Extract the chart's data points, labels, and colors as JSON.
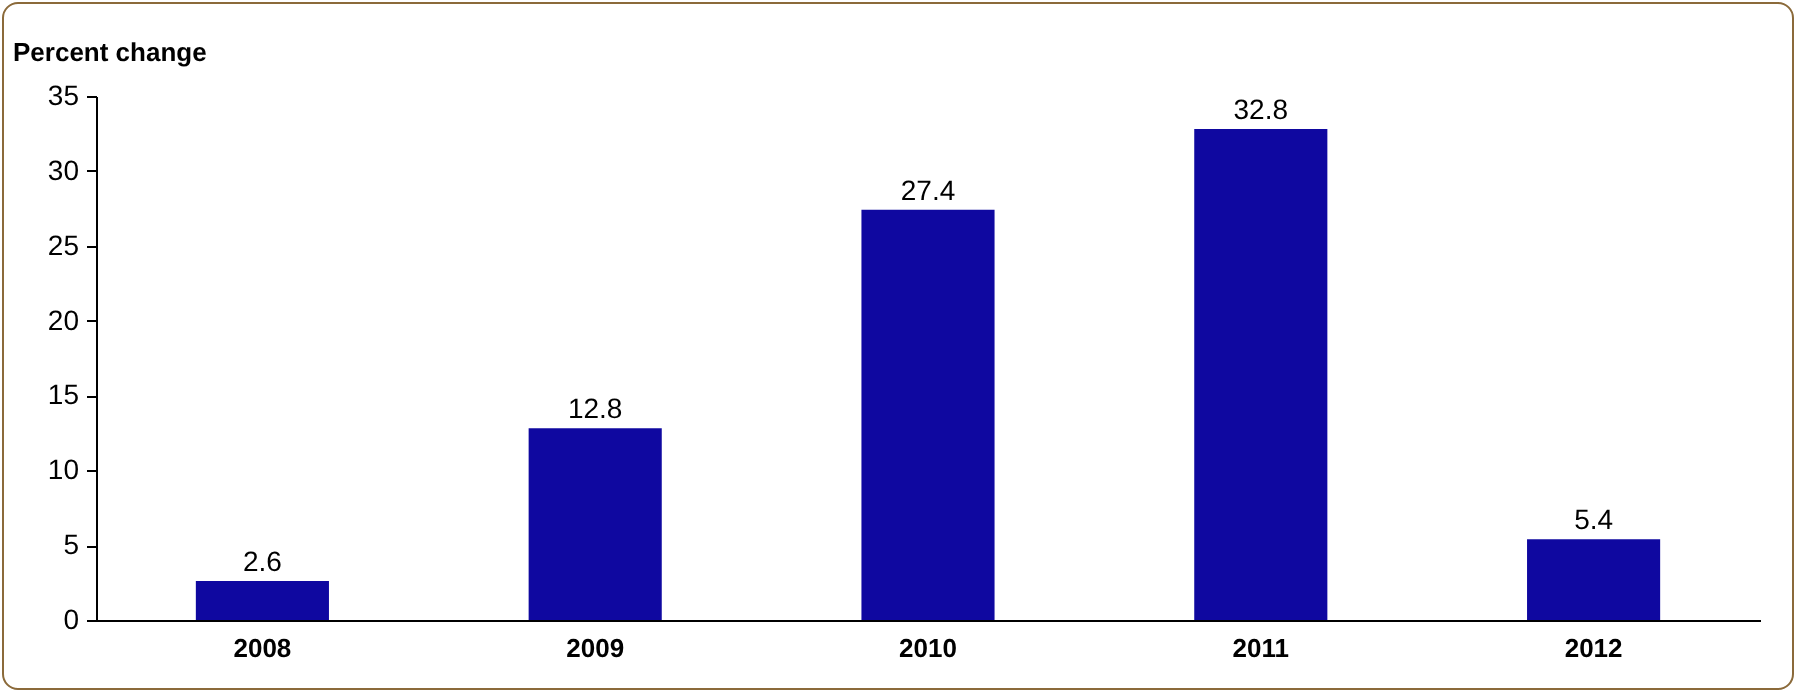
{
  "chart_data": {
    "type": "bar",
    "ylabel": "Percent change",
    "categories": [
      "2008",
      "2009",
      "2010",
      "2011",
      "2012"
    ],
    "values": [
      2.6,
      12.8,
      27.4,
      32.8,
      5.4
    ],
    "color": "#0f08a0",
    "ylim": [
      0,
      35
    ],
    "yticks": [
      0,
      5,
      10,
      15,
      20,
      25,
      30,
      35
    ],
    "grid": false,
    "data_labels": true
  }
}
